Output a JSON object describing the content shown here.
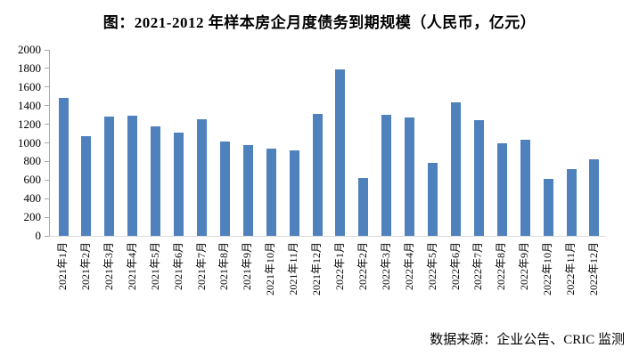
{
  "chart": {
    "title": "图：2021-2012 年样本房企月度债务到期规模（人民币，亿元）",
    "source": "数据来源：企业公告、CRIC 监测"
  },
  "chart_data": {
    "type": "bar",
    "title": "图：2021-2012 年样本房企月度债务到期规模（人民币，亿元）",
    "categories": [
      "2021年1月",
      "2021年2月",
      "2021年3月",
      "2021年4月",
      "2021年5月",
      "2021年6月",
      "2021年7月",
      "2021年8月",
      "2021年9月",
      "2021年10月",
      "2021年11月",
      "2021年12月",
      "2022年1月",
      "2022年2月",
      "2022年3月",
      "2022年4月",
      "2022年5月",
      "2022年6月",
      "2022年7月",
      "2022年8月",
      "2022年9月",
      "2022年10月",
      "2022年11月",
      "2022年12月"
    ],
    "values": [
      1480,
      1070,
      1280,
      1290,
      1175,
      1110,
      1250,
      1015,
      975,
      940,
      920,
      1310,
      1790,
      620,
      1300,
      1270,
      785,
      1440,
      1245,
      1000,
      1030,
      610,
      715,
      820
    ],
    "xlabel": "",
    "ylabel": "",
    "ylim": [
      0,
      2000
    ],
    "yticks": [
      0,
      200,
      400,
      600,
      800,
      1000,
      1200,
      1400,
      1600,
      1800,
      2000
    ],
    "grid": false,
    "legend_position": "none",
    "bar_color": "#4F81BD",
    "axis_color": "#a8a8a8",
    "baseline_color": "#d9d9d9",
    "source_note": "数据来源：企业公告、CRIC 监测"
  }
}
